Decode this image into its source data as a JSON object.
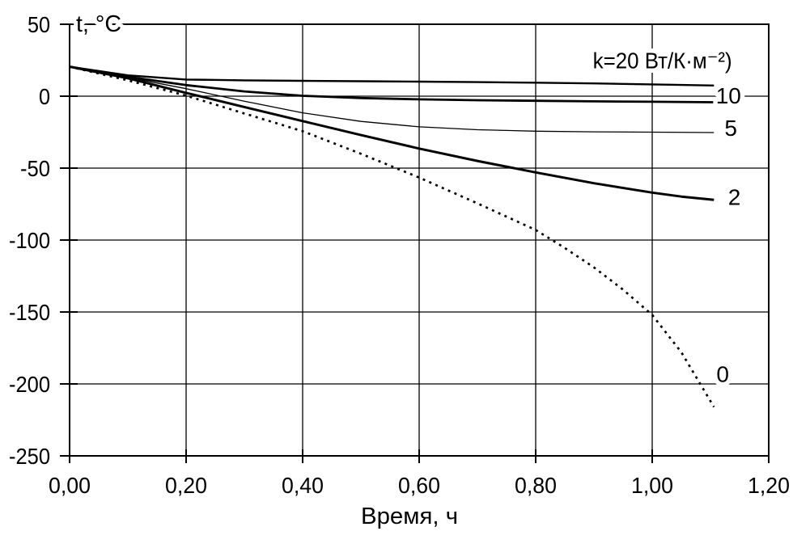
{
  "colors": {
    "foreground": "#000000",
    "background": "#ffffff"
  },
  "chart_data": {
    "type": "line",
    "title": "",
    "xlabel": "Время, ч",
    "ylabel": "t, °C",
    "xlim": [
      0.0,
      1.2
    ],
    "ylim": [
      -250,
      50
    ],
    "grid": true,
    "legend_position": "labels-at-line-ends",
    "x_ticks": [
      {
        "v": 0.0,
        "label": "0,00"
      },
      {
        "v": 0.2,
        "label": "0,20"
      },
      {
        "v": 0.4,
        "label": "0,40"
      },
      {
        "v": 0.6,
        "label": "0,60"
      },
      {
        "v": 0.8,
        "label": "0,80"
      },
      {
        "v": 1.0,
        "label": "1,00"
      },
      {
        "v": 1.2,
        "label": "1,20"
      }
    ],
    "y_ticks": [
      {
        "v": 50,
        "label": "50"
      },
      {
        "v": 0,
        "label": "0"
      },
      {
        "v": -50,
        "label": "-50"
      },
      {
        "v": -100,
        "label": "-100"
      },
      {
        "v": -150,
        "label": "-150"
      },
      {
        "v": -200,
        "label": "-200"
      },
      {
        "v": -250,
        "label": "-250"
      }
    ],
    "series": [
      {
        "name": "k20",
        "k_value": 20,
        "label": "k=20 Вт/К·м⁻²)",
        "style": "solid",
        "stroke_width": 2.4,
        "label_anchor": "end",
        "label_x": 1.137,
        "label_y": 25,
        "x": [
          0,
          0.1,
          0.2,
          0.3,
          0.4,
          0.5,
          0.6,
          0.7,
          0.8,
          0.9,
          1.0,
          1.05,
          1.106
        ],
        "y": [
          20.5,
          14.5,
          11.6,
          11.0,
          10.7,
          10.4,
          10.1,
          9.8,
          9.4,
          8.9,
          8.2,
          7.8,
          7.4
        ]
      },
      {
        "name": "k10",
        "k_value": 10,
        "label": "10",
        "style": "solid",
        "stroke_width": 2.8,
        "label_anchor": "middle",
        "label_x": 1.131,
        "label_y": 0.5,
        "x": [
          0,
          0.1,
          0.2,
          0.3,
          0.4,
          0.5,
          0.6,
          0.7,
          0.8,
          0.9,
          1.0,
          1.106
        ],
        "y": [
          20.5,
          13.5,
          7.7,
          3.3,
          0.3,
          -1.3,
          -2.2,
          -2.8,
          -3.2,
          -3.6,
          -3.9,
          -4.2
        ]
      },
      {
        "name": "k5",
        "k_value": 5,
        "label": "5",
        "style": "solid",
        "stroke_width": 1.3,
        "label_anchor": "middle",
        "label_x": 1.135,
        "label_y": -22,
        "x": [
          0,
          0.1,
          0.2,
          0.3,
          0.4,
          0.5,
          0.6,
          0.7,
          0.8,
          0.9,
          1.0,
          1.106
        ],
        "y": [
          20.5,
          13.0,
          5.2,
          -3.5,
          -11.6,
          -17.5,
          -21.3,
          -23.3,
          -24.3,
          -24.8,
          -25.0,
          -25.3
        ]
      },
      {
        "name": "k2",
        "k_value": 2,
        "label": "2",
        "style": "solid",
        "stroke_width": 3.0,
        "label_anchor": "middle",
        "label_x": 1.141,
        "label_y": -70,
        "x": [
          0,
          0.1,
          0.2,
          0.3,
          0.4,
          0.5,
          0.6,
          0.7,
          0.8,
          0.9,
          1.0,
          1.05,
          1.106
        ],
        "y": [
          20.5,
          12.5,
          2.3,
          -7.5,
          -17.3,
          -27.0,
          -36.4,
          -45.0,
          -53.0,
          -60.5,
          -67.0,
          -69.8,
          -72.0
        ]
      },
      {
        "name": "k0",
        "k_value": 0,
        "label": "0",
        "style": "dotted",
        "stroke_width": 2.7,
        "label_anchor": "middle",
        "label_x": 1.121,
        "label_y": -193,
        "x": [
          0,
          0.1,
          0.2,
          0.3,
          0.4,
          0.5,
          0.6,
          0.7,
          0.8,
          0.85,
          0.9,
          0.95,
          1.0,
          1.05,
          1.106
        ],
        "y": [
          20.5,
          11.0,
          0.4,
          -12.0,
          -24.3,
          -40.0,
          -56.6,
          -74.5,
          -93.0,
          -105.5,
          -119.0,
          -134.5,
          -152.0,
          -178.0,
          -216.0
        ]
      }
    ]
  }
}
